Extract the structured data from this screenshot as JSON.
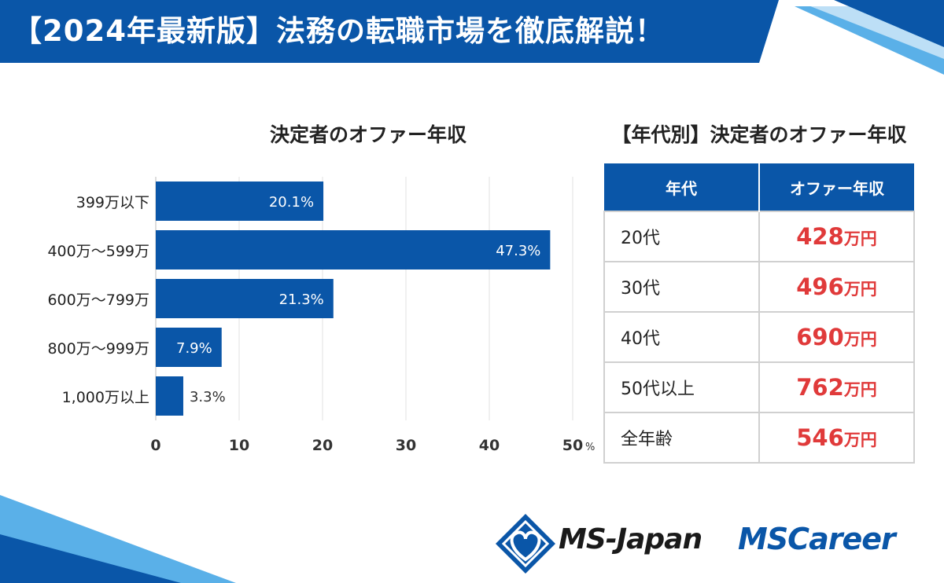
{
  "header": {
    "title": "【2024年最新版】法務の転職市場を徹底解説！"
  },
  "colors": {
    "brand_blue": "#0a56a8",
    "accent_red": "#e03a3a",
    "grid": "#e2e2e2"
  },
  "chart_data": {
    "type": "bar",
    "orientation": "horizontal",
    "title": "決定者のオファー年収",
    "categories": [
      "399万以下",
      "400万～599万",
      "600万～799万",
      "800万～999万",
      "1,000万以上"
    ],
    "values": [
      20.1,
      47.3,
      21.3,
      7.9,
      3.3
    ],
    "value_labels": [
      "20.1%",
      "47.3%",
      "21.3%",
      "7.9%",
      "3.3%"
    ],
    "xlim": [
      0,
      50
    ],
    "xticks": [
      0,
      10,
      20,
      30,
      40,
      50
    ],
    "xtick_labels": [
      "0",
      "10",
      "20",
      "30",
      "40",
      "50"
    ],
    "x_unit": "%",
    "grid": true
  },
  "age_table": {
    "title": "【年代別】決定者のオファー年収",
    "headers": [
      "年代",
      "オファー年収"
    ],
    "rows": [
      {
        "age": "20代",
        "income": "428",
        "unit": "万円"
      },
      {
        "age": "30代",
        "income": "496",
        "unit": "万円"
      },
      {
        "age": "40代",
        "income": "690",
        "unit": "万円"
      },
      {
        "age": "50代以上",
        "income": "762",
        "unit": "万円"
      },
      {
        "age": "全年齢",
        "income": "546",
        "unit": "万円"
      }
    ]
  },
  "logos": {
    "msjapan": "MS-Japan",
    "mscareer": "MSCareer"
  }
}
